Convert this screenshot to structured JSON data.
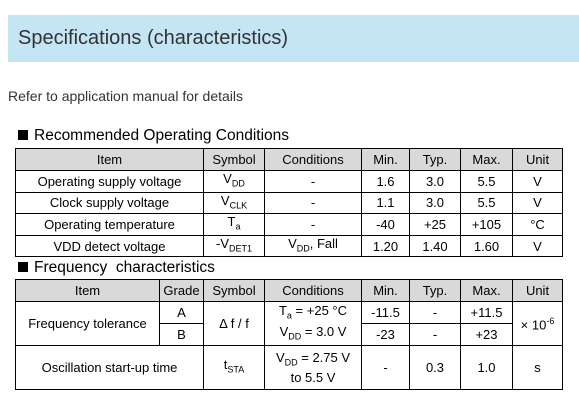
{
  "header": {
    "title": "Specifications (characteristics)"
  },
  "intro": "Refer to application manual for details",
  "sections": [
    {
      "heading": "Recommended Operating Conditions",
      "table": {
        "columns": [
          "Item",
          "Symbol",
          "Conditions",
          "Min.",
          "Typ.",
          "Max.",
          "Unit"
        ],
        "rows": [
          [
            "Operating supply voltage",
            [
              "V",
              {
                "sub": "DD"
              }
            ],
            "-",
            "1.6",
            "3.0",
            "5.5",
            "V"
          ],
          [
            "Clock supply voltage",
            [
              "V",
              {
                "sub": "CLK"
              }
            ],
            "-",
            "1.1",
            "3.0",
            "5.5",
            "V"
          ],
          [
            "Operating temperature",
            [
              "T",
              {
                "sub": "a"
              }
            ],
            "-",
            "-40",
            "+25",
            "+105",
            "°C"
          ],
          [
            "VDD detect voltage",
            [
              "-V",
              {
                "sub": "DET1"
              }
            ],
            [
              "V",
              {
                "sub": "DD"
              },
              ", Fall"
            ],
            "1.20",
            "1.40",
            "1.60",
            "V"
          ]
        ]
      }
    },
    {
      "heading": "Frequency  characteristics",
      "table": {
        "columns": [
          "Item",
          "Grade",
          "Symbol",
          "Conditions",
          "Min.",
          "Typ.",
          "Max.",
          "Unit"
        ],
        "tolerance": {
          "item": "Frequency tolerance",
          "symbol": "Δ f / f",
          "conditions": [
            [
              "T",
              {
                "sub": "a"
              },
              " = +25 °C"
            ],
            [
              "V",
              {
                "sub": "DD"
              },
              " = 3.0 V"
            ]
          ],
          "unit": [
            "× 10",
            {
              "sup": "-6"
            }
          ],
          "grades": [
            {
              "grade": "A",
              "min": "-11.5",
              "typ": "-",
              "max": "+11.5"
            },
            {
              "grade": "B",
              "min": "-23",
              "typ": "-",
              "max": "+23"
            }
          ]
        },
        "startup": {
          "item": "Oscillation start-up time",
          "symbol": [
            "t",
            {
              "sub": "STA"
            }
          ],
          "conditions": [
            [
              "V",
              {
                "sub": "DD"
              },
              " = 2.75 V"
            ],
            [
              "to 5.5 V"
            ]
          ],
          "min": "-",
          "typ": "0.3",
          "max": "1.0",
          "unit": "s"
        }
      }
    }
  ]
}
